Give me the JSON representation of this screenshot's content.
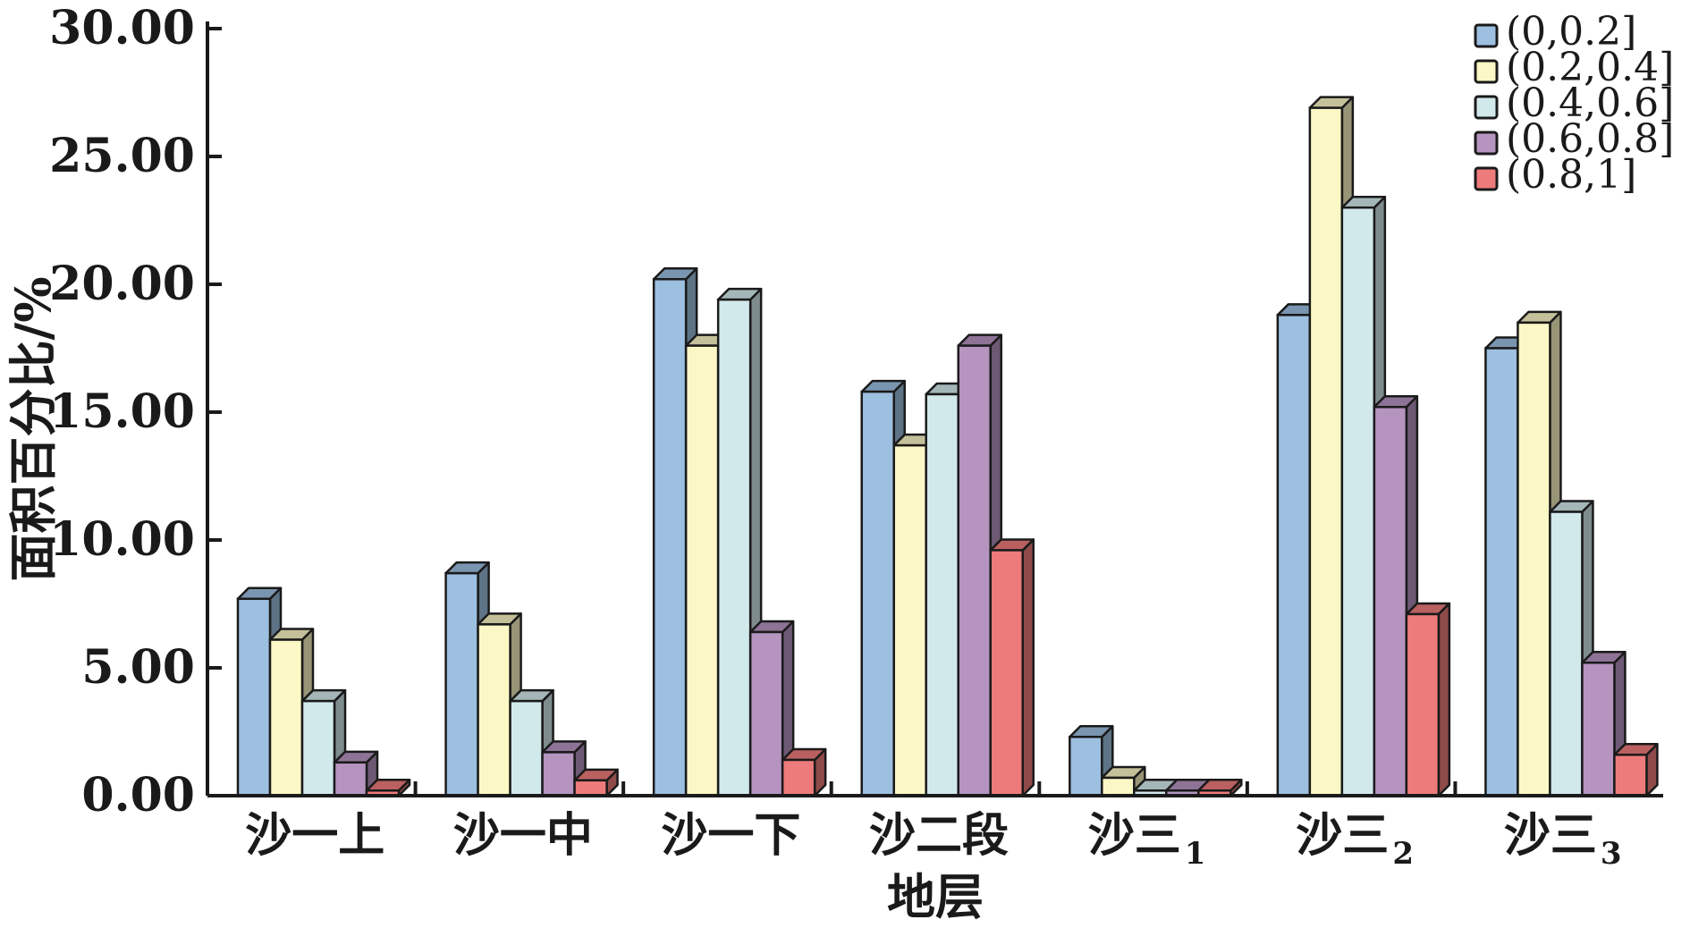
{
  "chart_data": {
    "type": "bar",
    "xlabel": "地层",
    "ylabel": "面积百分比/%",
    "ylim": [
      0,
      30
    ],
    "yticks": [
      "0.00",
      "5.00",
      "10.00",
      "15.00",
      "20.00",
      "25.00",
      "30.00"
    ],
    "categories": [
      {
        "main": "沙一上",
        "sub": ""
      },
      {
        "main": "沙一中",
        "sub": ""
      },
      {
        "main": "沙一下",
        "sub": ""
      },
      {
        "main": "沙二段",
        "sub": ""
      },
      {
        "main": "沙三",
        "sub": "1"
      },
      {
        "main": "沙三",
        "sub": "2"
      },
      {
        "main": "沙三",
        "sub": "3"
      }
    ],
    "series": [
      {
        "name": "(0,0.2]",
        "color": "#9dbfe0",
        "values": [
          7.7,
          8.7,
          20.2,
          15.8,
          2.3,
          18.8,
          17.5
        ]
      },
      {
        "name": "(0.2,0.4]",
        "color": "#fbf8c5",
        "values": [
          6.1,
          6.7,
          17.6,
          13.7,
          0.7,
          26.9,
          18.5
        ]
      },
      {
        "name": "(0.4,0.6]",
        "color": "#d2e9ec",
        "values": [
          3.7,
          3.7,
          19.4,
          15.7,
          0.2,
          23.0,
          11.1
        ]
      },
      {
        "name": "(0.6,0.8]",
        "color": "#b594c0",
        "values": [
          1.3,
          1.7,
          6.4,
          17.6,
          0.2,
          15.2,
          5.2
        ]
      },
      {
        "name": "(0.8,1]",
        "color": "#ee7b7b",
        "values": [
          0.2,
          0.6,
          1.4,
          9.6,
          0.2,
          7.1,
          1.6
        ]
      }
    ],
    "legend_position": "top-right",
    "grid": false
  }
}
